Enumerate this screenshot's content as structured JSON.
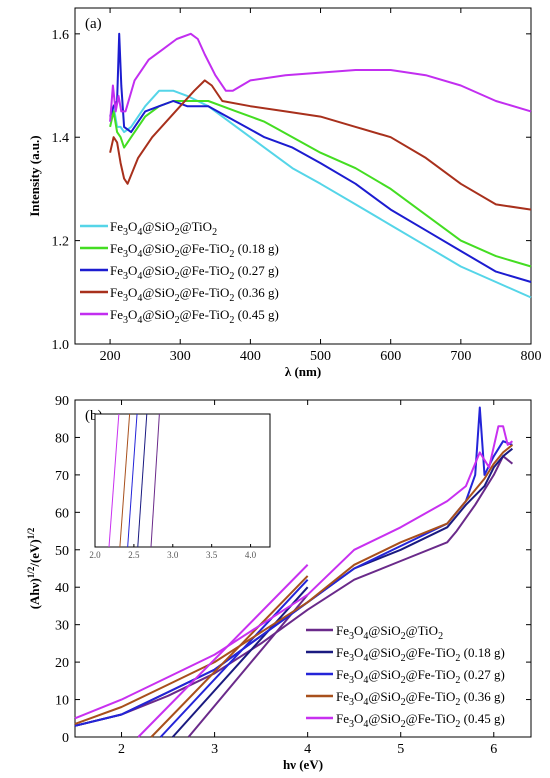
{
  "chart_data": [
    {
      "type": "line",
      "panel_label": "(a)",
      "xlabel": "λ (nm)",
      "ylabel": "Intensity (a.u.)",
      "xlim": [
        150,
        800
      ],
      "ylim": [
        1.0,
        1.65
      ],
      "xticks": [
        200,
        300,
        400,
        500,
        600,
        700,
        800
      ],
      "yticks": [
        1.0,
        1.2,
        1.4,
        1.6
      ],
      "xtick_labels": [
        "200",
        "300",
        "400",
        "500",
        "600",
        "700",
        "800"
      ],
      "ytick_labels": [
        "1.0",
        "1.2",
        "1.4",
        "1.6"
      ],
      "legend_position": "lower-left",
      "series": [
        {
          "name": "Fe3O4@SiO2@TiO2",
          "color": "#55d5e8",
          "x": [
            200,
            205,
            210,
            215,
            220,
            230,
            250,
            270,
            290,
            310,
            340,
            380,
            420,
            460,
            500,
            550,
            600,
            650,
            700,
            750,
            800
          ],
          "y": [
            1.43,
            1.46,
            1.42,
            1.42,
            1.41,
            1.42,
            1.46,
            1.49,
            1.49,
            1.48,
            1.46,
            1.42,
            1.38,
            1.34,
            1.31,
            1.27,
            1.23,
            1.19,
            1.15,
            1.12,
            1.09
          ]
        },
        {
          "name": "Fe3O4@SiO2@Fe-TiO2 (0.18 g)",
          "color": "#44dd22",
          "x": [
            200,
            205,
            210,
            215,
            220,
            230,
            250,
            270,
            290,
            310,
            340,
            380,
            420,
            460,
            500,
            550,
            600,
            650,
            700,
            750,
            800
          ],
          "y": [
            1.42,
            1.45,
            1.41,
            1.4,
            1.38,
            1.4,
            1.44,
            1.46,
            1.47,
            1.47,
            1.47,
            1.45,
            1.43,
            1.4,
            1.37,
            1.34,
            1.3,
            1.25,
            1.2,
            1.17,
            1.15
          ]
        },
        {
          "name": "Fe3O4@SiO2@Fe-TiO2 (0.27 g)",
          "color": "#1c1cd0",
          "x": [
            200,
            205,
            210,
            213,
            216,
            220,
            230,
            250,
            270,
            290,
            310,
            340,
            380,
            420,
            460,
            500,
            550,
            600,
            650,
            700,
            750,
            800
          ],
          "y": [
            1.44,
            1.46,
            1.47,
            1.6,
            1.5,
            1.42,
            1.41,
            1.45,
            1.46,
            1.47,
            1.46,
            1.46,
            1.43,
            1.4,
            1.38,
            1.35,
            1.31,
            1.26,
            1.22,
            1.18,
            1.14,
            1.12
          ]
        },
        {
          "name": "Fe3O4@SiO2@Fe-TiO2 (0.36 g)",
          "color": "#a8301c",
          "x": [
            200,
            205,
            210,
            215,
            220,
            225,
            240,
            260,
            280,
            300,
            320,
            335,
            345,
            360,
            400,
            450,
            500,
            550,
            600,
            650,
            700,
            750,
            800
          ],
          "y": [
            1.37,
            1.4,
            1.39,
            1.35,
            1.32,
            1.31,
            1.36,
            1.4,
            1.43,
            1.46,
            1.49,
            1.51,
            1.5,
            1.47,
            1.46,
            1.45,
            1.44,
            1.42,
            1.4,
            1.36,
            1.31,
            1.27,
            1.26
          ]
        },
        {
          "name": "Fe3O4@SiO2@Fe-TiO2 (0.45 g)",
          "color": "#c22ef0",
          "x": [
            200,
            204,
            208,
            212,
            216,
            222,
            235,
            255,
            275,
            295,
            315,
            325,
            335,
            350,
            365,
            375,
            400,
            450,
            500,
            550,
            600,
            650,
            700,
            750,
            800
          ],
          "y": [
            1.43,
            1.5,
            1.45,
            1.48,
            1.45,
            1.45,
            1.51,
            1.55,
            1.57,
            1.59,
            1.6,
            1.59,
            1.56,
            1.52,
            1.49,
            1.49,
            1.51,
            1.52,
            1.525,
            1.53,
            1.53,
            1.52,
            1.5,
            1.47,
            1.45
          ]
        }
      ]
    },
    {
      "type": "line",
      "panel_label": "(b)",
      "xlabel": "hν (eV)",
      "ylabel": "(Ahν)1/2/(eV)1/2",
      "xlim": [
        1.5,
        6.4
      ],
      "ylim": [
        0,
        90
      ],
      "xticks": [
        2,
        3,
        4,
        5,
        6
      ],
      "yticks": [
        0,
        10,
        20,
        30,
        40,
        50,
        60,
        70,
        80,
        90
      ],
      "xtick_labels": [
        "2",
        "3",
        "4",
        "5",
        "6"
      ],
      "ytick_labels": [
        "0",
        "10",
        "20",
        "30",
        "40",
        "50",
        "60",
        "70",
        "80",
        "90"
      ],
      "legend_position": "lower-right",
      "series": [
        {
          "name": "Fe3O4@SiO2@TiO2",
          "color": "#6a2a8a",
          "x": [
            1.5,
            2.0,
            2.5,
            3.0,
            3.5,
            4.0,
            4.5,
            5.0,
            5.5,
            5.6,
            5.8,
            6.0,
            6.1,
            6.2
          ],
          "y": [
            3,
            6,
            11,
            17,
            25,
            34,
            42,
            47,
            52,
            55,
            62,
            70,
            75,
            73
          ],
          "tangent_x": [
            2.72,
            4.0
          ],
          "tangent_y": [
            0,
            38
          ]
        },
        {
          "name": "Fe3O4@SiO2@Fe-TiO2 (0.18 g)",
          "color": "#1a1a80",
          "x": [
            1.5,
            2.0,
            2.5,
            3.0,
            3.5,
            4.0,
            4.5,
            5.0,
            5.5,
            5.7,
            5.9,
            6.0,
            6.1,
            6.2
          ],
          "y": [
            3,
            6,
            12,
            18,
            27,
            36,
            45,
            50,
            56,
            62,
            67,
            72,
            75,
            77
          ],
          "tangent_x": [
            2.55,
            4.0
          ],
          "tangent_y": [
            0,
            40
          ]
        },
        {
          "name": "Fe3O4@SiO2@Fe-TiO2 (0.27 g)",
          "color": "#2424d8",
          "x": [
            1.5,
            2.0,
            2.5,
            3.0,
            3.5,
            4.0,
            4.5,
            5.0,
            5.5,
            5.7,
            5.8,
            5.85,
            5.9,
            6.0,
            6.1,
            6.2
          ],
          "y": [
            3,
            6,
            12,
            18,
            27,
            36,
            45,
            51,
            57,
            63,
            70,
            88,
            70,
            75,
            79,
            78
          ],
          "tangent_x": [
            2.42,
            4.0
          ],
          "tangent_y": [
            0,
            42
          ]
        },
        {
          "name": "Fe3O4@SiO2@Fe-TiO2 (0.36 g)",
          "color": "#a8501c",
          "x": [
            1.5,
            2.0,
            2.5,
            3.0,
            3.5,
            4.0,
            4.5,
            5.0,
            5.5,
            5.7,
            5.9,
            6.0,
            6.1,
            6.2
          ],
          "y": [
            3.5,
            8,
            14,
            20,
            28,
            36,
            46,
            52,
            57,
            63,
            69,
            73,
            76,
            78
          ],
          "tangent_x": [
            2.32,
            4.0
          ],
          "tangent_y": [
            0,
            43
          ]
        },
        {
          "name": "Fe3O4@SiO2@Fe-TiO2 (0.45 g)",
          "color": "#c830f0",
          "x": [
            1.5,
            2.0,
            2.5,
            3.0,
            3.5,
            4.0,
            4.5,
            5.0,
            5.5,
            5.7,
            5.85,
            5.95,
            6.05,
            6.1,
            6.15,
            6.2
          ],
          "y": [
            5,
            10,
            16,
            22,
            30,
            38,
            50,
            56,
            63,
            67,
            76,
            72,
            83,
            83,
            78,
            79
          ],
          "tangent_x": [
            2.18,
            4.0
          ],
          "tangent_y": [
            0,
            46
          ]
        }
      ],
      "inset": {
        "xticks": [
          2.0,
          2.5,
          3.0,
          3.5,
          4.0
        ],
        "xtick_labels": [
          "2.0",
          "2.5",
          "3.0",
          "3.5",
          "4.0"
        ],
        "xlim": [
          2.0,
          4.25
        ],
        "ylim": [
          0,
          10
        ]
      }
    }
  ]
}
